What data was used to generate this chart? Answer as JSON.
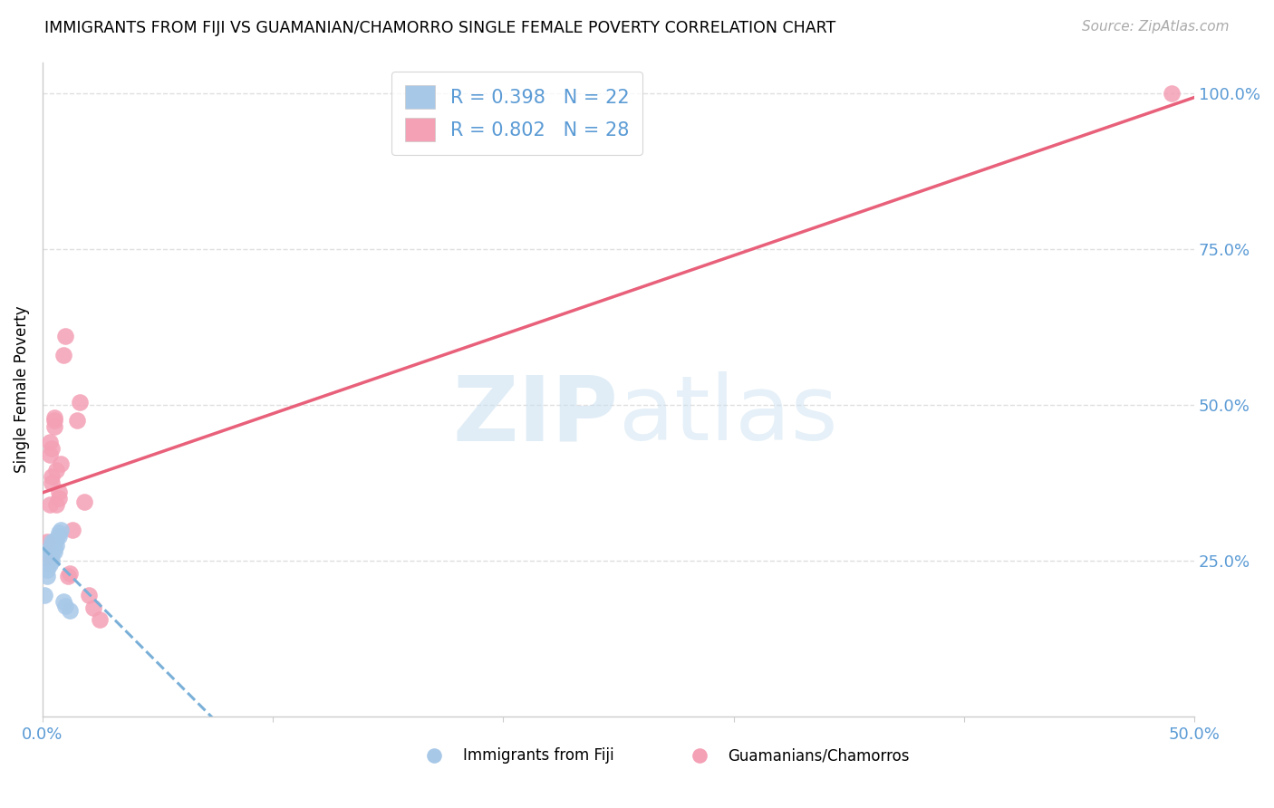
{
  "title": "IMMIGRANTS FROM FIJI VS GUAMANIAN/CHAMORRO SINGLE FEMALE POVERTY CORRELATION CHART",
  "source": "Source: ZipAtlas.com",
  "ylabel": "Single Female Poverty",
  "xlim": [
    0.0,
    0.5
  ],
  "ylim": [
    0.0,
    1.05
  ],
  "xticks": [
    0.0,
    0.1,
    0.2,
    0.3,
    0.4,
    0.5
  ],
  "xtick_labels": [
    "0.0%",
    "",
    "",
    "",
    "",
    "50.0%"
  ],
  "yticks_right": [
    0.0,
    0.25,
    0.5,
    0.75,
    1.0
  ],
  "ytick_labels_right": [
    "",
    "25.0%",
    "50.0%",
    "75.0%",
    "100.0%"
  ],
  "fiji_color": "#a8c8e8",
  "guam_color": "#f4a0b5",
  "fiji_line_color": "#7ab0d8",
  "guam_line_color": "#e8607a",
  "fiji_R": 0.398,
  "fiji_N": 22,
  "guam_R": 0.802,
  "guam_N": 28,
  "fiji_scatter_x": [
    0.001,
    0.002,
    0.002,
    0.003,
    0.003,
    0.003,
    0.003,
    0.004,
    0.004,
    0.004,
    0.004,
    0.005,
    0.005,
    0.005,
    0.006,
    0.006,
    0.007,
    0.007,
    0.008,
    0.009,
    0.01,
    0.012
  ],
  "fiji_scatter_y": [
    0.195,
    0.225,
    0.235,
    0.245,
    0.255,
    0.265,
    0.27,
    0.25,
    0.26,
    0.275,
    0.28,
    0.27,
    0.28,
    0.265,
    0.275,
    0.285,
    0.29,
    0.295,
    0.3,
    0.185,
    0.178,
    0.17
  ],
  "guam_scatter_x": [
    0.001,
    0.002,
    0.003,
    0.003,
    0.003,
    0.004,
    0.004,
    0.004,
    0.005,
    0.005,
    0.005,
    0.006,
    0.006,
    0.007,
    0.007,
    0.008,
    0.009,
    0.01,
    0.011,
    0.012,
    0.013,
    0.015,
    0.016,
    0.018,
    0.02,
    0.022,
    0.025,
    0.49
  ],
  "guam_scatter_y": [
    0.255,
    0.28,
    0.34,
    0.42,
    0.44,
    0.385,
    0.375,
    0.43,
    0.465,
    0.48,
    0.475,
    0.395,
    0.34,
    0.35,
    0.36,
    0.405,
    0.58,
    0.61,
    0.225,
    0.23,
    0.3,
    0.475,
    0.505,
    0.345,
    0.195,
    0.175,
    0.155,
    1.0
  ],
  "background_color": "#ffffff",
  "grid_color": "#d8d8d8"
}
